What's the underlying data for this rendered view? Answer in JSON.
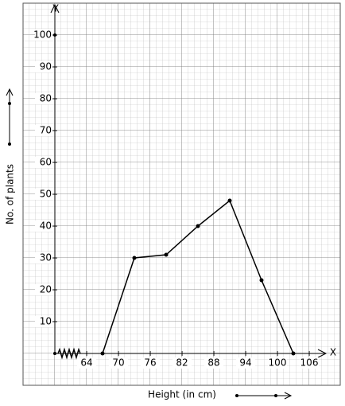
{
  "chart_data": {
    "type": "line",
    "x_label": "X",
    "y_label": "Y",
    "x_title": "Height (in cm)",
    "y_title": "No. of plants",
    "x": [
      67,
      73,
      79,
      85,
      91,
      97,
      103
    ],
    "values": [
      0,
      30,
      31,
      40,
      48,
      23,
      0
    ],
    "color": "#000000",
    "xlim": [
      58,
      109
    ],
    "ylim": [
      0,
      109
    ],
    "xticks": [
      64,
      70,
      76,
      82,
      88,
      94,
      100,
      106
    ],
    "yticks": [
      10,
      20,
      30,
      40,
      50,
      60,
      70,
      80,
      90,
      100
    ]
  }
}
